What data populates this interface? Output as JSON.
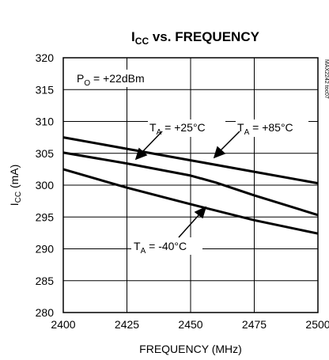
{
  "chart_data": {
    "type": "line",
    "title_main": "I",
    "title_sub": "CC",
    "title_rest": " vs. FREQUENCY",
    "xlabel": "FREQUENCY (MHz)",
    "ylabel_main": "I",
    "ylabel_sub": "CC",
    "ylabel_rest": " (mA)",
    "xlim": [
      2400,
      2500
    ],
    "ylim": [
      280,
      320
    ],
    "x_ticks": [
      "2400",
      "2425",
      "2450",
      "2475",
      "2500"
    ],
    "y_ticks": [
      "280",
      "285",
      "290",
      "295",
      "300",
      "305",
      "310",
      "315",
      "320"
    ],
    "grid": true,
    "series": [
      {
        "name_main": "T",
        "name_sub": "A",
        "name_rest": " = +85°C",
        "x": [
          2400,
          2425,
          2450,
          2475,
          2500
        ],
        "y": [
          307.5,
          305.7,
          303.9,
          302.1,
          300.3
        ]
      },
      {
        "name_main": "T",
        "name_sub": "A",
        "name_rest": " = +25°C",
        "x": [
          2400,
          2425,
          2450,
          2460,
          2475,
          2500
        ],
        "y": [
          305.1,
          303.4,
          301.5,
          300.4,
          298.4,
          295.3
        ]
      },
      {
        "name_main": "T",
        "name_sub": "A",
        "name_rest": " = -40°C",
        "x": [
          2400,
          2425,
          2450,
          2475,
          2500
        ],
        "y": [
          302.5,
          299.6,
          297.0,
          294.5,
          292.4
        ]
      }
    ],
    "annotation": {
      "main": "P",
      "sub": "O",
      "rest": " = +22dBm"
    },
    "side_text": "MAX2242 toc07"
  }
}
